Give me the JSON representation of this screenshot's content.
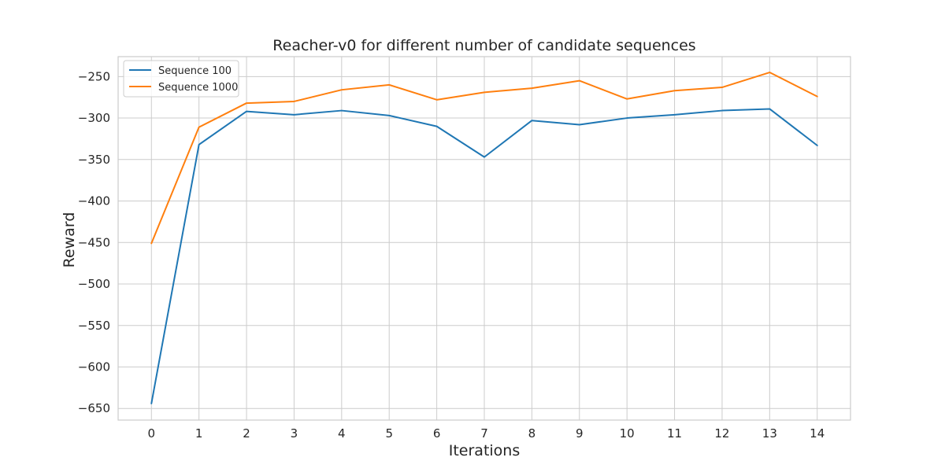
{
  "chart_data": {
    "type": "line",
    "title": "Reacher-v0 for different number of candidate sequences",
    "xlabel": "Iterations",
    "ylabel": "Reward",
    "x": [
      0,
      1,
      2,
      3,
      4,
      5,
      6,
      7,
      8,
      9,
      10,
      11,
      12,
      13,
      14
    ],
    "x_tick_labels": [
      "0",
      "1",
      "2",
      "3",
      "4",
      "5",
      "6",
      "7",
      "8",
      "9",
      "10",
      "11",
      "12",
      "13",
      "14"
    ],
    "y_ticks": [
      -250,
      -300,
      -350,
      -400,
      -450,
      -500,
      -550,
      -600,
      -650
    ],
    "y_tick_labels": [
      "−250",
      "−300",
      "−350",
      "−400",
      "−450",
      "−500",
      "−550",
      "−600",
      "−650"
    ],
    "xlim": [
      -0.7,
      14.7
    ],
    "ylim": [
      -664,
      -226
    ],
    "grid": true,
    "legend_position": "top-left",
    "series": [
      {
        "name": "Sequence 100",
        "color": "#1f77b4",
        "values": [
          -644,
          -332,
          -292,
          -296,
          -291,
          -297,
          -310,
          -347,
          -303,
          -308,
          -300,
          -296,
          -291,
          -289,
          -333
        ]
      },
      {
        "name": "Sequence 1000",
        "color": "#ff7f0e",
        "values": [
          -451,
          -311,
          -282,
          -280,
          -266,
          -260,
          -278,
          -269,
          -264,
          -255,
          -277,
          -267,
          -263,
          -245,
          -274
        ]
      }
    ]
  }
}
